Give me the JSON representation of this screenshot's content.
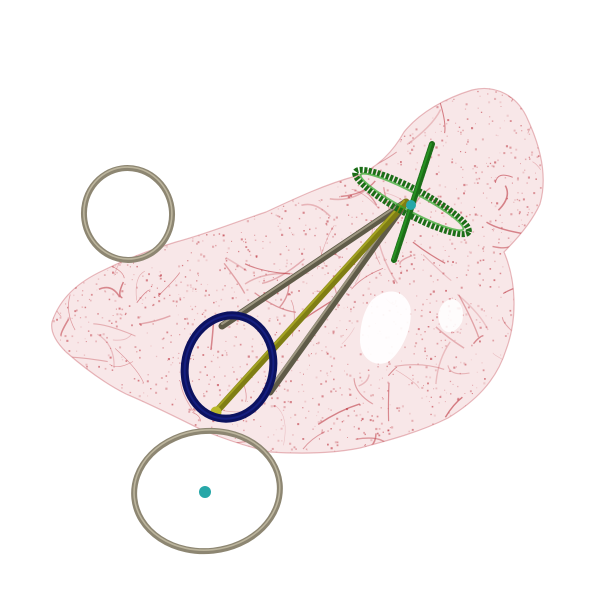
{
  "scene": {
    "background": "#ffffff",
    "colors": {
      "mesh": "#c0404a",
      "mesh_fill": "#f3d4d6",
      "tan_ring": "#8d8672",
      "tan_ring_highlight": "#c8c0a8",
      "blue_ring": "#1e2a9c",
      "blue_ring_dark": "#0c1260",
      "green_ring": "#2fa82a",
      "green_ring_dark": "#1c6e18",
      "yellow_rod": "#b9b82a",
      "yellow_rod_dark": "#7f7e14",
      "gray_rod": "#8f8a72",
      "gray_rod_dark": "#5f5b48",
      "cyan_marker": "#27a7a8"
    },
    "objects": [
      "point-cloud-mesh",
      "tan-ring-upper-left",
      "tan-ring-bottom",
      "blue-ring",
      "green-ring",
      "yellow-rod",
      "gray-rods",
      "cyan-markers"
    ]
  }
}
